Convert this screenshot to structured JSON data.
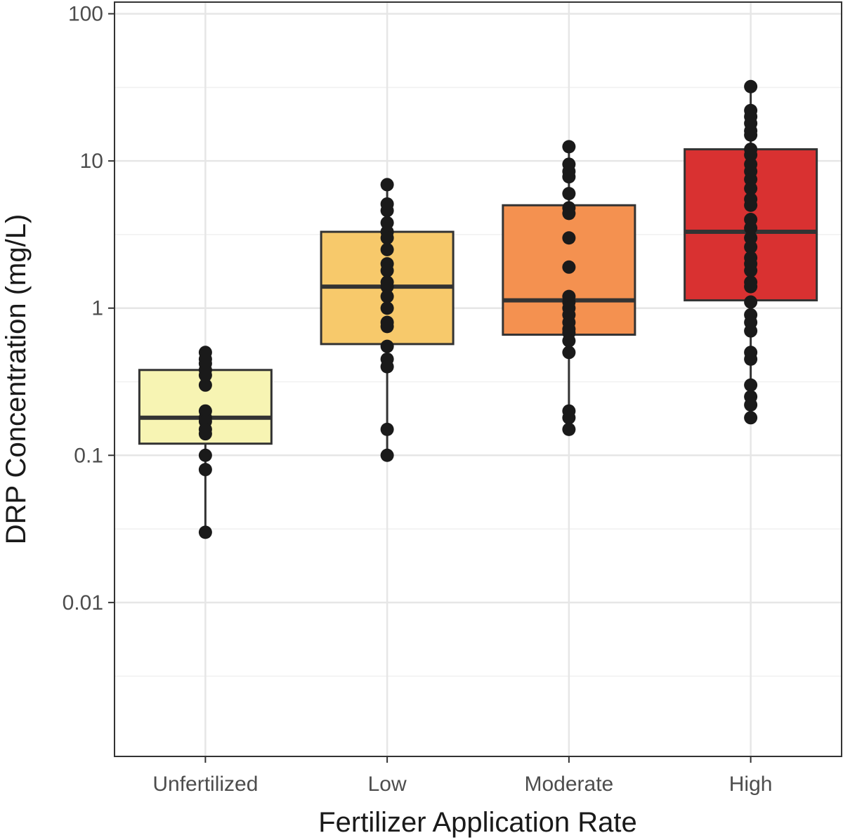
{
  "chart_data": {
    "type": "box",
    "title": "",
    "xlabel": "Fertilizer Application Rate",
    "ylabel": "DRP Concentration (mg/L)",
    "yscale": "log10",
    "ylim": [
      0.0009,
      120
    ],
    "y_ticks": [
      {
        "value": 0.01,
        "label": "0.01"
      },
      {
        "value": 0.1,
        "label": "0.1"
      },
      {
        "value": 1,
        "label": "1"
      },
      {
        "value": 10,
        "label": "10"
      },
      {
        "value": 100,
        "label": "100"
      }
    ],
    "y_minor_ticks": [
      0.00316,
      0.0316,
      0.316,
      3.16,
      31.6
    ],
    "grid": true,
    "categories": [
      "Unfertilized",
      "Low",
      "Moderate",
      "High"
    ],
    "boxes": [
      {
        "category": "Unfertilized",
        "fill": "#f7f4b3",
        "q1": 0.12,
        "median": 0.18,
        "q3": 0.38,
        "whisker_low": 0.03,
        "whisker_high": 0.5,
        "points": [
          0.5,
          0.45,
          0.42,
          0.38,
          0.35,
          0.3,
          0.2,
          0.18,
          0.17,
          0.15,
          0.14,
          0.1,
          0.08,
          0.03
        ]
      },
      {
        "category": "Low",
        "fill": "#f7c96b",
        "q1": 0.57,
        "median": 1.4,
        "q3": 3.3,
        "whisker_low": 0.1,
        "whisker_high": 6.9,
        "points": [
          6.9,
          5.1,
          4.6,
          3.8,
          3.3,
          3.0,
          2.5,
          2.0,
          1.8,
          1.5,
          1.4,
          1.2,
          1.0,
          0.8,
          0.75,
          0.55,
          0.45,
          0.4,
          0.15,
          0.1
        ]
      },
      {
        "category": "Moderate",
        "fill": "#f49150",
        "q1": 0.66,
        "median": 1.13,
        "q3": 5.0,
        "whisker_low": 0.15,
        "whisker_high": 12.5,
        "points": [
          12.5,
          9.5,
          8.5,
          7.8,
          6.0,
          4.8,
          4.4,
          3.0,
          1.9,
          1.2,
          1.1,
          1.0,
          0.9,
          0.8,
          0.72,
          0.68,
          0.6,
          0.5,
          0.2,
          0.18,
          0.15
        ]
      },
      {
        "category": "High",
        "fill": "#d93131",
        "q1": 1.13,
        "median": 3.3,
        "q3": 12.0,
        "whisker_low": 0.18,
        "whisker_high": 32,
        "points": [
          32,
          22,
          20,
          18,
          16,
          15,
          12,
          11,
          9.5,
          8.5,
          7.5,
          6.5,
          5.5,
          5.0,
          4.0,
          3.5,
          3.0,
          2.6,
          2.2,
          2.0,
          1.8,
          1.5,
          1.4,
          1.1,
          0.9,
          0.8,
          0.7,
          0.5,
          0.45,
          0.3,
          0.25,
          0.22,
          0.18
        ]
      }
    ]
  }
}
